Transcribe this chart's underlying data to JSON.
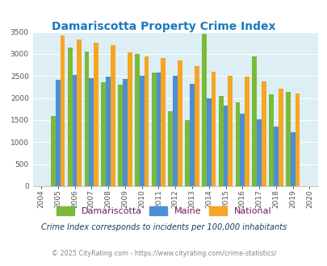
{
  "title": "Damariscotta Property Crime Index",
  "years": [
    2004,
    2005,
    2006,
    2007,
    2008,
    2009,
    2010,
    2011,
    2012,
    2013,
    2014,
    2015,
    2016,
    2017,
    2018,
    2019,
    2020
  ],
  "damariscotta": [
    null,
    1600,
    3150,
    3050,
    2350,
    2300,
    3000,
    2580,
    1700,
    1500,
    3450,
    2050,
    1900,
    2950,
    2080,
    2140,
    null
  ],
  "maine": [
    null,
    2420,
    2530,
    2450,
    2480,
    2430,
    2500,
    2570,
    2510,
    2320,
    2000,
    1820,
    1640,
    1510,
    1350,
    1230,
    null
  ],
  "national": [
    null,
    3420,
    3330,
    3250,
    3200,
    3040,
    2940,
    2900,
    2860,
    2720,
    2600,
    2500,
    2480,
    2380,
    2210,
    2110,
    null
  ],
  "bar_colors": {
    "damariscotta": "#7aba3a",
    "maine": "#4d8fd4",
    "national": "#f5a623"
  },
  "ylim": [
    0,
    3500
  ],
  "yticks": [
    0,
    500,
    1000,
    1500,
    2000,
    2500,
    3000,
    3500
  ],
  "background_color": "#ddeef5",
  "title_color": "#1a7abf",
  "legend_label_color": "#6b1a5e",
  "footnote1": "Crime Index corresponds to incidents per 100,000 inhabitants",
  "footnote2": "© 2025 CityRating.com - https://www.cityrating.com/crime-statistics/",
  "legend_labels": [
    "Damariscotta",
    "Maine",
    "National"
  ]
}
